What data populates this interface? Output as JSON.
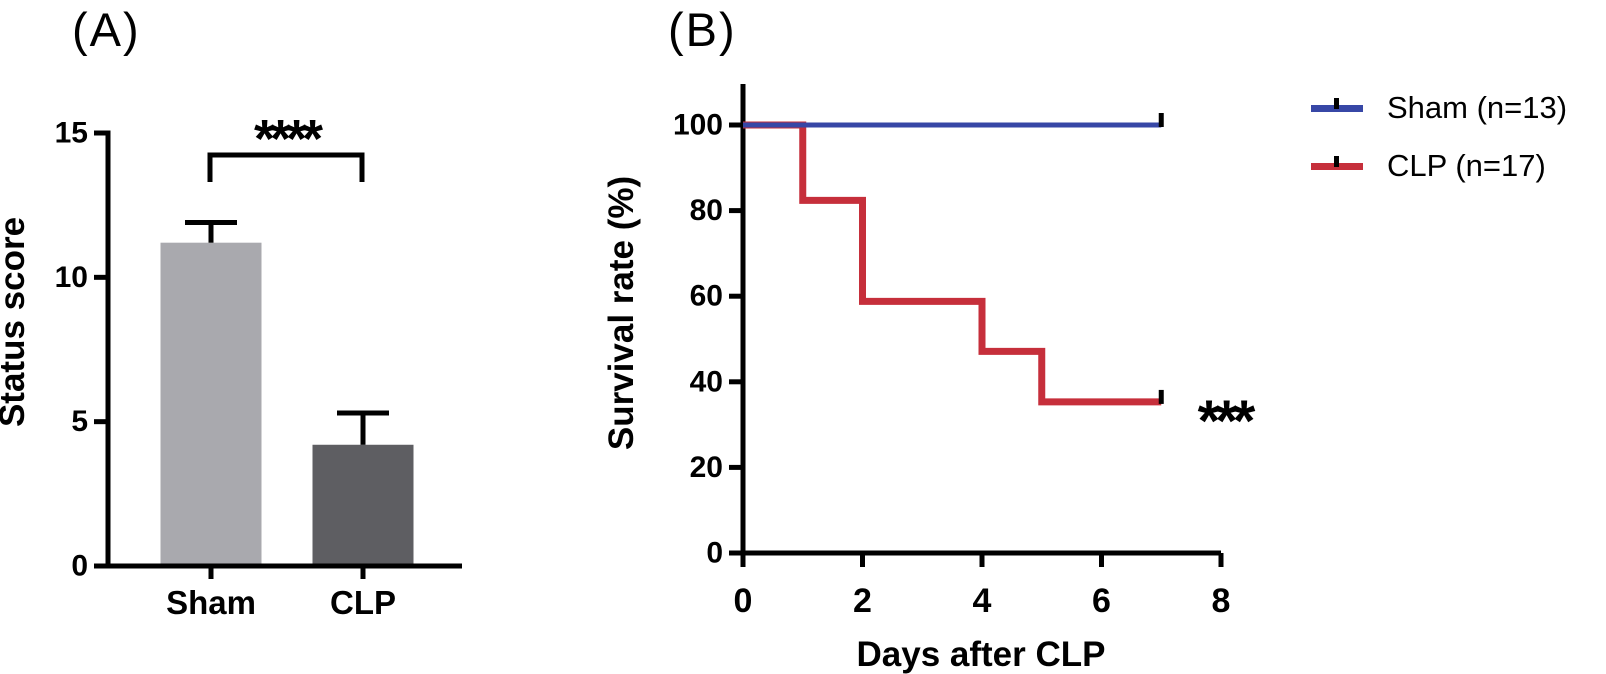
{
  "figure": {
    "background": "#ffffff",
    "axis_color": "#000000"
  },
  "chart_data": [
    {
      "id": "panel-a",
      "type": "bar",
      "title": "(A)",
      "ylabel": "Status score",
      "categories": [
        "Sham",
        "CLP"
      ],
      "values": [
        11.2,
        4.2
      ],
      "errors_up": [
        0.7,
        1.1
      ],
      "bar_colors": [
        "#a9a9ae",
        "#5e5e62"
      ],
      "yticks": [
        0,
        5,
        10,
        15
      ],
      "ylim": [
        0,
        15
      ],
      "significance": "****",
      "grid": false
    },
    {
      "id": "panel-b",
      "type": "line",
      "subtype": "kaplan-meier-step",
      "title": "(B)",
      "xlabel": "Days after CLP",
      "ylabel": "Survival rate (%)",
      "xticks": [
        0,
        2,
        4,
        6,
        8
      ],
      "yticks": [
        0,
        20,
        40,
        60,
        80,
        100
      ],
      "xlim": [
        0,
        8
      ],
      "ylim": [
        0,
        100
      ],
      "significance": "***",
      "grid": false,
      "legend_position": "right-of-plot",
      "series": [
        {
          "name": "Sham (n=13)",
          "color": "#3747a6",
          "points": [
            [
              0,
              100
            ],
            [
              7,
              100
            ]
          ],
          "censor_mark_at": [
            7,
            100
          ]
        },
        {
          "name": "CLP (n=17)",
          "color": "#c62f3b",
          "points": [
            [
              0,
              100
            ],
            [
              1,
              100
            ],
            [
              1,
              82.4
            ],
            [
              2,
              82.4
            ],
            [
              2,
              58.8
            ],
            [
              4,
              58.8
            ],
            [
              4,
              47.1
            ],
            [
              5,
              47.1
            ],
            [
              5,
              35.3
            ],
            [
              7,
              35.3
            ]
          ],
          "censor_mark_at": [
            7,
            35.3
          ]
        }
      ]
    }
  ],
  "legend": {
    "items": [
      {
        "label": "Sham (n=13)",
        "color": "#3747a6"
      },
      {
        "label": "CLP (n=17)",
        "color": "#c62f3b"
      }
    ]
  }
}
